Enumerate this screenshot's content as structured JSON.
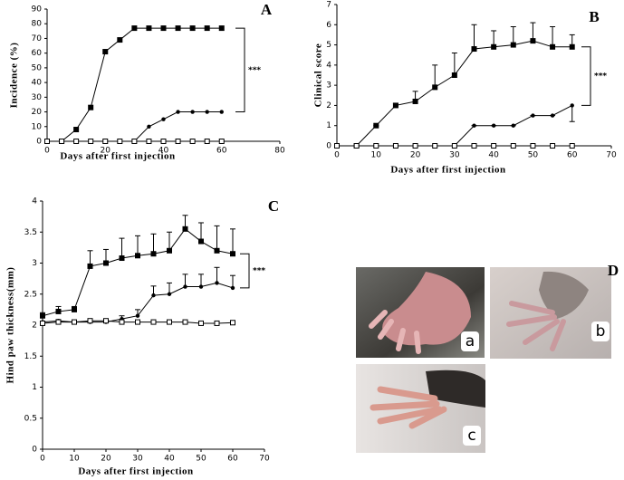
{
  "chart_data": [
    {
      "type": "line",
      "panel": "A",
      "ylabel": "Incidence (%)",
      "xlabel": "Days after first injection",
      "annotation": "***",
      "x": [
        0,
        5,
        10,
        15,
        20,
        25,
        30,
        35,
        40,
        45,
        50,
        55,
        60
      ],
      "series": [
        {
          "color": "#000000",
          "marker": "square",
          "values": [
            0,
            0,
            8,
            23,
            61,
            69,
            77,
            77,
            77,
            77,
            77,
            77,
            77
          ]
        },
        {
          "color": "#000000",
          "marker": "circle",
          "values": [
            0,
            0,
            0,
            0,
            0,
            0,
            0,
            10,
            15,
            20,
            20,
            20,
            20
          ]
        },
        {
          "color": "#000000",
          "marker": "open-square",
          "values": [
            0,
            0,
            0,
            0,
            0,
            0,
            0,
            0,
            0,
            0,
            0,
            0,
            0
          ]
        }
      ],
      "xlim": [
        0,
        80
      ],
      "ylim": [
        0,
        90
      ],
      "xticks": [
        0,
        20,
        40,
        60,
        80
      ],
      "yticks": [
        0,
        10,
        20,
        30,
        40,
        50,
        60,
        70,
        80,
        90
      ]
    },
    {
      "type": "line",
      "panel": "B",
      "ylabel": "Clinical score",
      "xlabel": "Days after first injection",
      "annotation": "***",
      "x": [
        0,
        5,
        10,
        15,
        20,
        25,
        30,
        35,
        40,
        45,
        50,
        55,
        60
      ],
      "series": [
        {
          "color": "#000000",
          "marker": "square",
          "values": [
            0,
            0,
            1,
            2,
            2.2,
            2.9,
            3.5,
            4.8,
            4.9,
            5,
            5.2,
            4.9,
            4.9
          ],
          "errors": [
            0,
            0,
            0,
            0.1,
            0.5,
            1.1,
            1.1,
            1.2,
            0.8,
            0.9,
            0.9,
            1,
            0.6
          ],
          "error_direction": "up"
        },
        {
          "color": "#000000",
          "marker": "circle",
          "values": [
            0,
            0,
            0,
            0,
            0,
            0,
            0,
            1,
            1,
            1,
            1.5,
            1.5,
            2
          ],
          "errors": [
            0,
            0,
            0,
            0,
            0,
            0,
            0,
            0,
            0,
            0,
            0,
            0,
            0.8
          ],
          "error_direction": "down"
        },
        {
          "color": "#000000",
          "marker": "open-square",
          "values": [
            0,
            0,
            0,
            0,
            0,
            0,
            0,
            0,
            0,
            0,
            0,
            0,
            0
          ]
        }
      ],
      "xlim": [
        0,
        70
      ],
      "ylim": [
        0,
        7
      ],
      "xticks": [
        0,
        10,
        20,
        30,
        40,
        50,
        60,
        70
      ],
      "yticks": [
        0,
        1,
        2,
        3,
        4,
        5,
        6,
        7
      ]
    },
    {
      "type": "line",
      "panel": "C",
      "ylabel": "Hind paw thickness(mm)",
      "xlabel": "Days after first injection",
      "annotation": "***",
      "x": [
        0,
        5,
        10,
        15,
        20,
        25,
        30,
        35,
        40,
        45,
        50,
        55,
        60
      ],
      "series": [
        {
          "color": "#000000",
          "marker": "square",
          "values": [
            2.15,
            2.22,
            2.25,
            2.95,
            3.0,
            3.08,
            3.12,
            3.15,
            3.2,
            3.55,
            3.35,
            3.2,
            3.15
          ],
          "errors": [
            0.05,
            0.08,
            0.05,
            0.25,
            0.22,
            0.32,
            0.32,
            0.32,
            0.3,
            0.22,
            0.3,
            0.4,
            0.4
          ],
          "error_direction": "up"
        },
        {
          "color": "#000000",
          "marker": "circle",
          "values": [
            2.05,
            2.07,
            2.05,
            2.05,
            2.05,
            2.1,
            2.15,
            2.48,
            2.5,
            2.62,
            2.62,
            2.68,
            2.6
          ],
          "errors": [
            0,
            0.02,
            0.02,
            0.02,
            0.03,
            0.05,
            0.1,
            0.15,
            0.18,
            0.2,
            0.2,
            0.25,
            0.2
          ],
          "error_direction": "up"
        },
        {
          "color": "#000000",
          "marker": "open-square",
          "values": [
            2.03,
            2.05,
            2.05,
            2.07,
            2.07,
            2.05,
            2.05,
            2.05,
            2.05,
            2.05,
            2.03,
            2.03,
            2.04
          ]
        }
      ],
      "xlim": [
        0,
        70
      ],
      "ylim": [
        0,
        4
      ],
      "xticks": [
        0,
        10,
        20,
        30,
        40,
        50,
        60,
        70
      ],
      "yticks": [
        0,
        0.5,
        1,
        1.5,
        2,
        2.5,
        3,
        3.5,
        4
      ]
    }
  ],
  "panel_d": {
    "title": "D",
    "labels": [
      "a",
      "b",
      "c"
    ]
  }
}
